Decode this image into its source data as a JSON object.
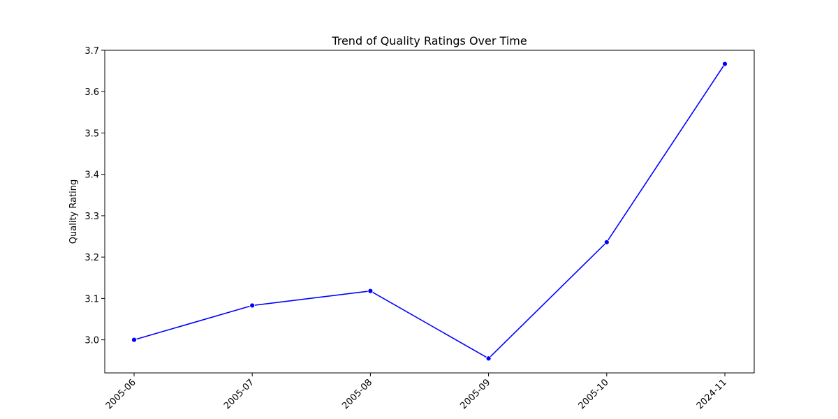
{
  "chart_data": {
    "type": "line",
    "title": "Trend of Quality Ratings Over Time",
    "xlabel": "",
    "ylabel": "Quality Rating",
    "categories": [
      "2005-06",
      "2005-07",
      "2005-08",
      "2005-09",
      "2005-10",
      "2024-11"
    ],
    "series": [
      {
        "values": [
          3.0,
          3.083,
          3.118,
          2.955,
          3.236,
          3.667
        ]
      }
    ],
    "yticks": [
      "3.0",
      "3.1",
      "3.2",
      "3.3",
      "3.4",
      "3.5",
      "3.6",
      "3.7"
    ],
    "ylim": [
      2.92,
      3.7
    ],
    "grid": false,
    "legend": "none",
    "line_color": "#0000ff",
    "marker": "circle"
  }
}
